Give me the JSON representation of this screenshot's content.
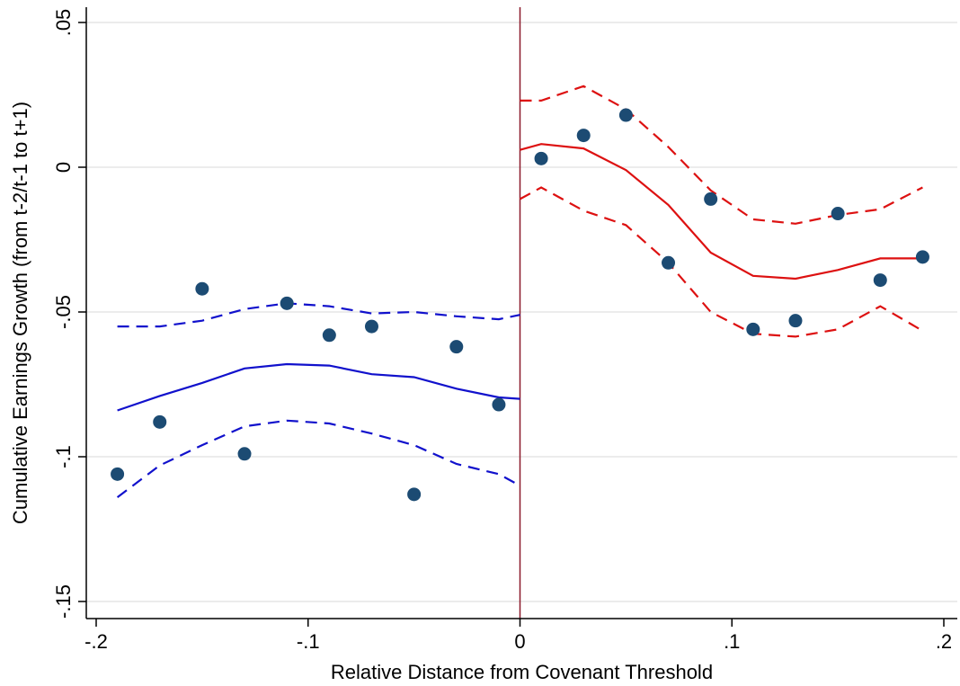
{
  "chart_data": {
    "type": "scatter",
    "title": "",
    "xlabel": "Relative Distance from Covenant Threshold",
    "ylabel": "Cumulative Earnings Growth (from t-2/t-1 to t+1)",
    "xlim": [
      -0.2,
      0.2
    ],
    "ylim": [
      -0.15,
      0.05
    ],
    "xticks": [
      {
        "value": -0.2,
        "label": "-.2"
      },
      {
        "value": -0.1,
        "label": "-.1"
      },
      {
        "value": 0,
        "label": "0"
      },
      {
        "value": 0.1,
        "label": ".1"
      },
      {
        "value": 0.2,
        "label": ".2"
      }
    ],
    "yticks": [
      {
        "value": -0.15,
        "label": "-.15"
      },
      {
        "value": -0.1,
        "label": "-.1"
      },
      {
        "value": -0.05,
        "label": "-.05"
      },
      {
        "value": 0,
        "label": "0"
      },
      {
        "value": 0.05,
        "label": ".05"
      }
    ],
    "grid": true,
    "threshold_line": {
      "x": 0,
      "color": "#8b1a2b"
    },
    "colors": {
      "points": "#1c4b73",
      "left_fit": "#1111cc",
      "right_fit": "#dd1111",
      "grid": "#e6e6e6"
    },
    "points": [
      {
        "x": -0.19,
        "y": -0.106
      },
      {
        "x": -0.17,
        "y": -0.088
      },
      {
        "x": -0.15,
        "y": -0.042
      },
      {
        "x": -0.13,
        "y": -0.099
      },
      {
        "x": -0.11,
        "y": -0.047
      },
      {
        "x": -0.09,
        "y": -0.058
      },
      {
        "x": -0.07,
        "y": -0.055
      },
      {
        "x": -0.05,
        "y": -0.113
      },
      {
        "x": -0.03,
        "y": -0.062
      },
      {
        "x": -0.01,
        "y": -0.082
      },
      {
        "x": 0.01,
        "y": 0.003
      },
      {
        "x": 0.03,
        "y": 0.011
      },
      {
        "x": 0.05,
        "y": 0.018
      },
      {
        "x": 0.07,
        "y": -0.033
      },
      {
        "x": 0.09,
        "y": -0.011
      },
      {
        "x": 0.11,
        "y": -0.056
      },
      {
        "x": 0.13,
        "y": -0.053
      },
      {
        "x": 0.15,
        "y": -0.016
      },
      {
        "x": 0.17,
        "y": -0.039
      },
      {
        "x": 0.19,
        "y": -0.031
      }
    ],
    "fits": [
      {
        "side": "left",
        "x": [
          -0.19,
          -0.17,
          -0.15,
          -0.13,
          -0.11,
          -0.09,
          -0.07,
          -0.05,
          -0.03,
          -0.01,
          0.0
        ],
        "fit": [
          -0.084,
          -0.079,
          -0.0745,
          -0.0695,
          -0.068,
          -0.0685,
          -0.0715,
          -0.0725,
          -0.0765,
          -0.0795,
          -0.08
        ],
        "upper": [
          -0.055,
          -0.055,
          -0.053,
          -0.049,
          -0.047,
          -0.048,
          -0.0505,
          -0.05,
          -0.0515,
          -0.0525,
          -0.051
        ],
        "lower": [
          -0.114,
          -0.103,
          -0.096,
          -0.0895,
          -0.0875,
          -0.0885,
          -0.092,
          -0.096,
          -0.1025,
          -0.106,
          -0.11
        ]
      },
      {
        "side": "right",
        "x": [
          0.0,
          0.01,
          0.03,
          0.05,
          0.07,
          0.09,
          0.11,
          0.13,
          0.15,
          0.17,
          0.19
        ],
        "fit": [
          0.006,
          0.008,
          0.0065,
          -0.001,
          -0.013,
          -0.0295,
          -0.0375,
          -0.0385,
          -0.0355,
          -0.0315,
          -0.0315
        ],
        "upper": [
          0.023,
          0.023,
          0.028,
          0.02,
          0.007,
          -0.008,
          -0.018,
          -0.0195,
          -0.0165,
          -0.0145,
          -0.007
        ],
        "lower": [
          -0.011,
          -0.007,
          -0.015,
          -0.02,
          -0.033,
          -0.05,
          -0.0575,
          -0.0585,
          -0.056,
          -0.048,
          -0.0565
        ]
      }
    ]
  }
}
